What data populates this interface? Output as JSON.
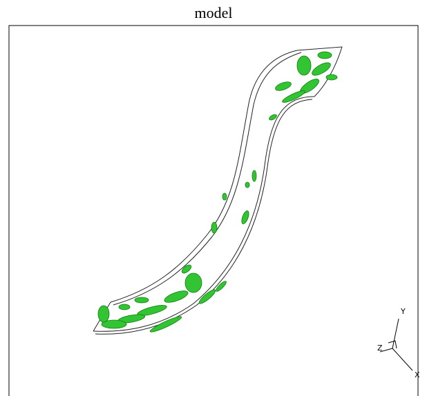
{
  "header": {
    "title": "model"
  },
  "axes": {
    "x": "X",
    "y": "Y",
    "z": "Z"
  }
}
